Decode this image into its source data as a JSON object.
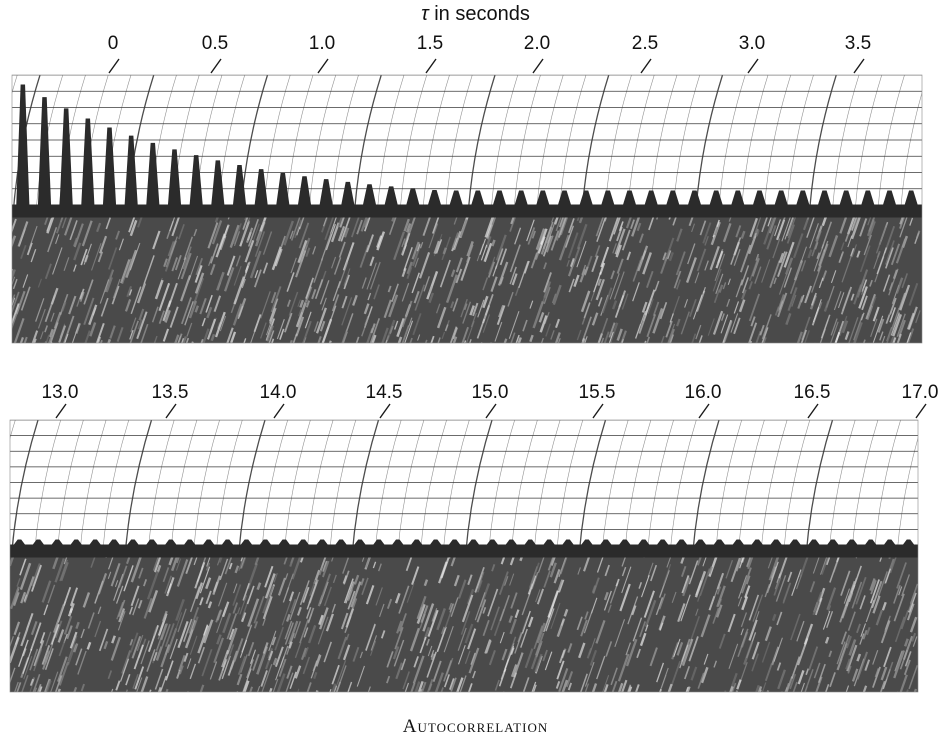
{
  "chart_data": [
    {
      "type": "line",
      "panel": "top",
      "xlabel": "τ in seconds",
      "xticks": [
        "0",
        "0.5",
        "1.0",
        "1.5",
        "2.0",
        "2.5",
        "3.0",
        "3.5"
      ],
      "xlim": [
        0,
        3.7
      ]
    },
    {
      "type": "line",
      "panel": "bottom",
      "xticks": [
        "13.0",
        "13.5",
        "14.0",
        "14.5",
        "15.0",
        "15.5",
        "16.0",
        "16.5",
        "17.0"
      ],
      "xlim": [
        13.0,
        17.0
      ]
    }
  ],
  "title": {
    "tau": "τ",
    "rest": " in seconds"
  },
  "caption": "Autocorrelation",
  "colors": {
    "ink": "#1a1a1a",
    "trace": "#2b2b2b",
    "paper": "#ffffff",
    "grid": "#3a3a3a"
  }
}
